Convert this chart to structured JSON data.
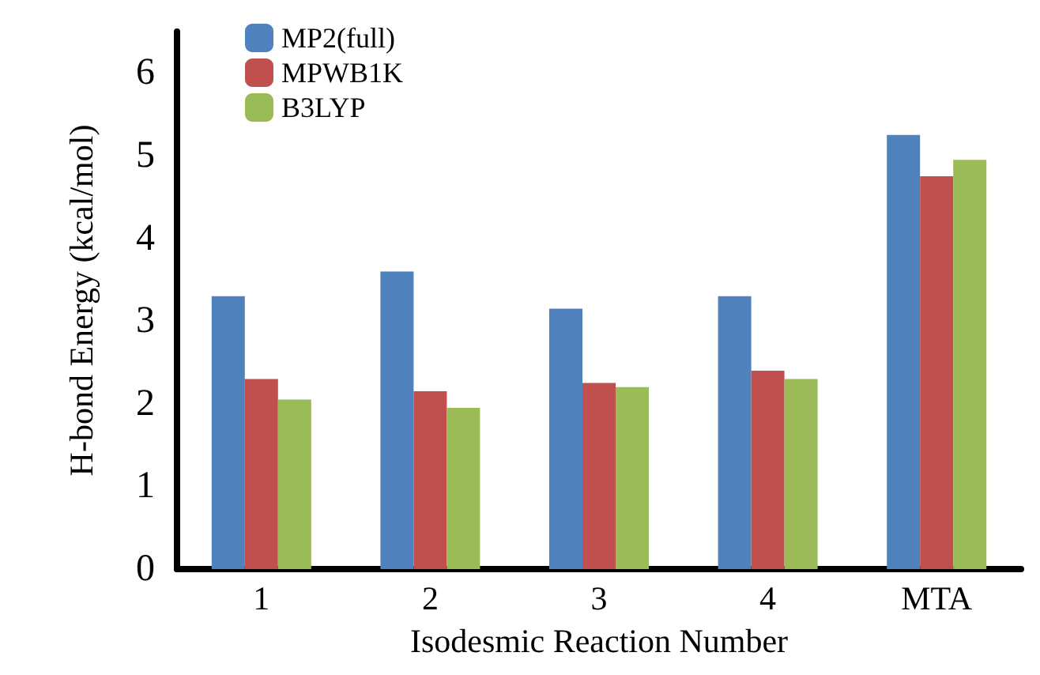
{
  "chart_data": {
    "type": "bar",
    "xlabel": "Isodesmic Reaction Number",
    "ylabel": "H-bond Energy (kcal/mol)",
    "categories": [
      "1",
      "2",
      "3",
      "4",
      "MTA"
    ],
    "series": [
      {
        "name": "MP2(full)",
        "color": "#4f81bd",
        "values": [
          3.3,
          3.6,
          3.15,
          3.3,
          5.25
        ]
      },
      {
        "name": "MPWB1K",
        "color": "#c0504d",
        "values": [
          2.3,
          2.15,
          2.25,
          2.4,
          4.75
        ]
      },
      {
        "name": "B3LYP",
        "color": "#9bbb59",
        "values": [
          2.05,
          1.95,
          2.2,
          2.3,
          4.95
        ]
      }
    ],
    "ylim": [
      0,
      6.5
    ],
    "yticks": [
      0,
      1,
      2,
      3,
      4,
      5,
      6
    ],
    "grid": false,
    "legend": "top left"
  }
}
